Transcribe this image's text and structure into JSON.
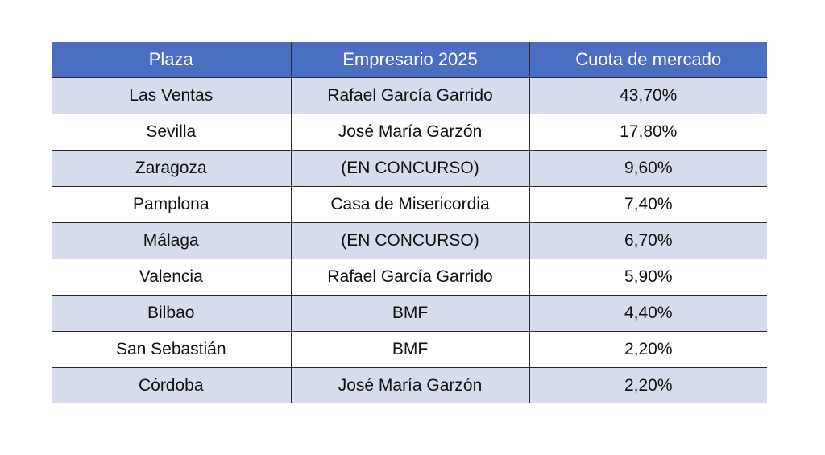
{
  "table": {
    "headers": [
      "Plaza",
      "Empresario 2025",
      "Cuota de mercado"
    ],
    "rows": [
      [
        "Las Ventas",
        "Rafael García Garrido",
        "43,70%"
      ],
      [
        "Sevilla",
        "José María Garzón",
        "17,80%"
      ],
      [
        "Zaragoza",
        "(EN CONCURSO)",
        "9,60%"
      ],
      [
        "Pamplona",
        "Casa de Misericordia",
        "7,40%"
      ],
      [
        "Málaga",
        "(EN CONCURSO)",
        "6,70%"
      ],
      [
        "Valencia",
        "Rafael García Garrido",
        "5,90%"
      ],
      [
        "Bilbao",
        "BMF",
        "4,40%"
      ],
      [
        "San Sebastián",
        "BMF",
        "2,20%"
      ],
      [
        "Córdoba",
        "José María Garzón",
        "2,20%"
      ]
    ]
  },
  "colors": {
    "header_background": "#4a6ec1",
    "header_text": "#ffffff",
    "band_background": "#d6dcec",
    "plain_background": "#ffffff"
  }
}
